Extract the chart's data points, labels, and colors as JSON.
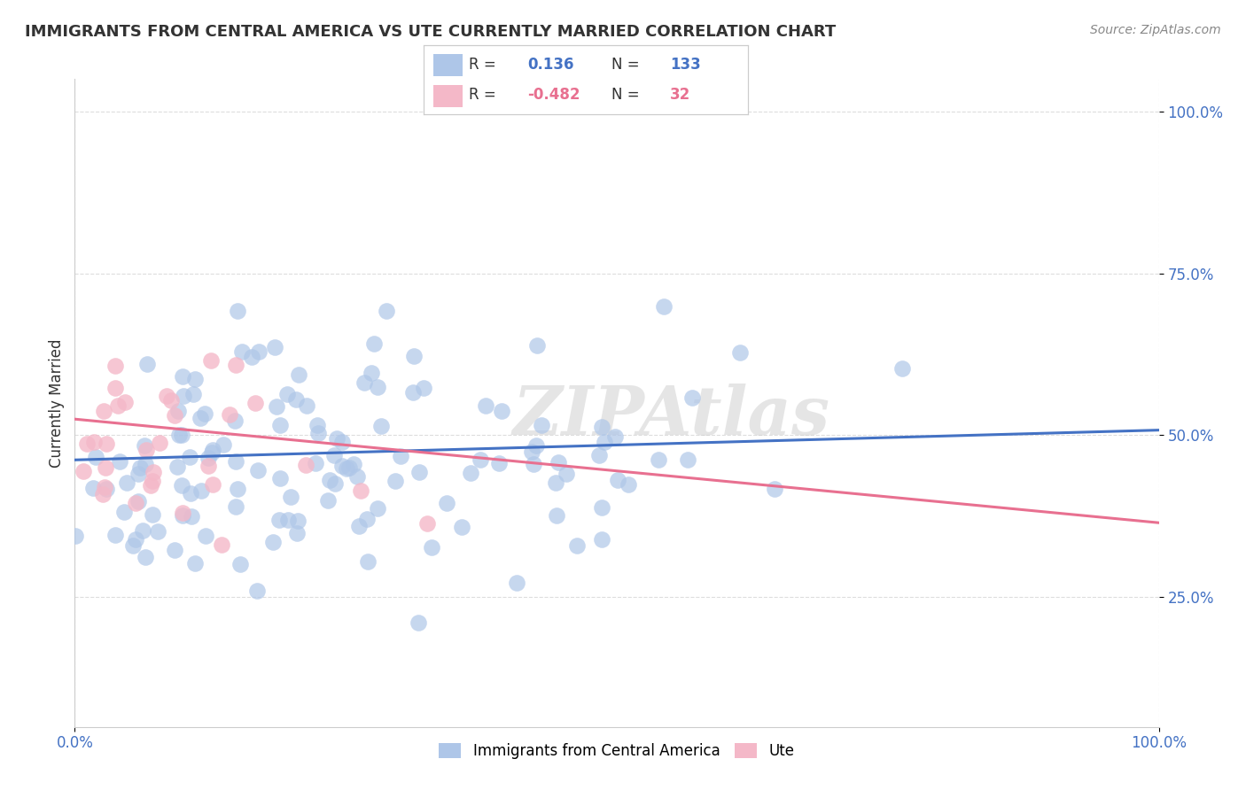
{
  "title": "IMMIGRANTS FROM CENTRAL AMERICA VS UTE CURRENTLY MARRIED CORRELATION CHART",
  "source": "Source: ZipAtlas.com",
  "ylabel": "Currently Married",
  "ytick_labels": [
    "100.0%",
    "75.0%",
    "50.0%",
    "25.0%"
  ],
  "ytick_values": [
    1.0,
    0.75,
    0.5,
    0.25
  ],
  "xlim": [
    0.0,
    1.0
  ],
  "ylim": [
    0.05,
    1.05
  ],
  "blue_R": 0.136,
  "blue_N": 133,
  "pink_R": -0.482,
  "pink_N": 32,
  "blue_color": "#aec6e8",
  "pink_color": "#f4b8c8",
  "blue_line_color": "#4472c4",
  "pink_line_color": "#e87090",
  "legend_label_blue": "Immigrants from Central America",
  "legend_label_pink": "Ute",
  "watermark": "ZIPAtlas",
  "background_color": "#ffffff",
  "grid_color": "#dddddd",
  "title_color": "#333333",
  "tick_color": "#4472c4",
  "blue_line_y0": 0.462,
  "blue_line_y1": 0.508,
  "pink_line_y0": 0.525,
  "pink_line_y1": 0.365
}
